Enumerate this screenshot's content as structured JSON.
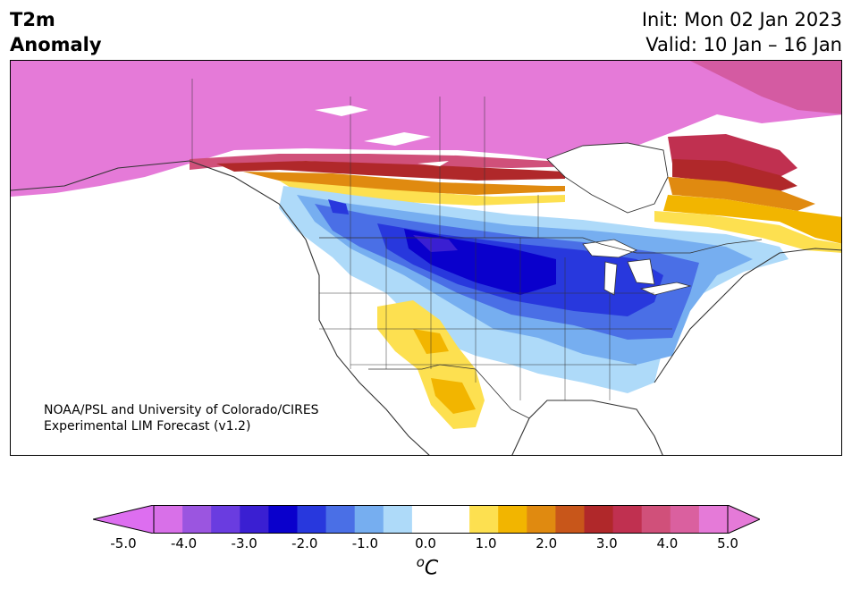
{
  "header": {
    "title_line1": "T2m",
    "title_line2": "Anomaly",
    "init_text": "Init: Mon 02 Jan 2023",
    "valid_text": "Valid: 10 Jan – 16 Jan"
  },
  "map": {
    "credit_line1": "NOAA/PSL and University of Colorado/CIRES",
    "credit_line2": "Experimental LIM Forecast (v1.2)"
  },
  "colorbar": {
    "unit_prefix": "o",
    "unit_letter": "C",
    "ticks": [
      "-5.0",
      "-4.0",
      "-3.0",
      "-2.0",
      "-1.0",
      "0.0",
      "1.0",
      "2.0",
      "3.0",
      "4.0",
      "5.0"
    ],
    "low_extend_color": "#dd6ef0",
    "high_extend_color": "#e57ad8",
    "colors": [
      "#d870e8",
      "#9b55e0",
      "#6a3ce0",
      "#3a1fd2",
      "#0a00cc",
      "#2838dd",
      "#4a6fe6",
      "#76aef0",
      "#aedaf9",
      "#ffffff",
      "#ffffff",
      "#fde050",
      "#f2b500",
      "#e08a10",
      "#c8561a",
      "#b0282a",
      "#c03050",
      "#d0507a",
      "#da609f",
      "#e57ad8"
    ]
  },
  "anomaly_colors": {
    "magenta": "#e57ad8",
    "pink": "#d45ba2",
    "deep_red": "#b0282a",
    "red": "#c8561a",
    "orange": "#e08a10",
    "gold": "#f2b500",
    "yellow": "#fde050",
    "light_blue": "#aedaf9",
    "sky_blue": "#76aef0",
    "blue": "#4a6fe6",
    "royal": "#2838dd",
    "deep_blue": "#0a00cc",
    "indigo": "#3a1fd2"
  }
}
